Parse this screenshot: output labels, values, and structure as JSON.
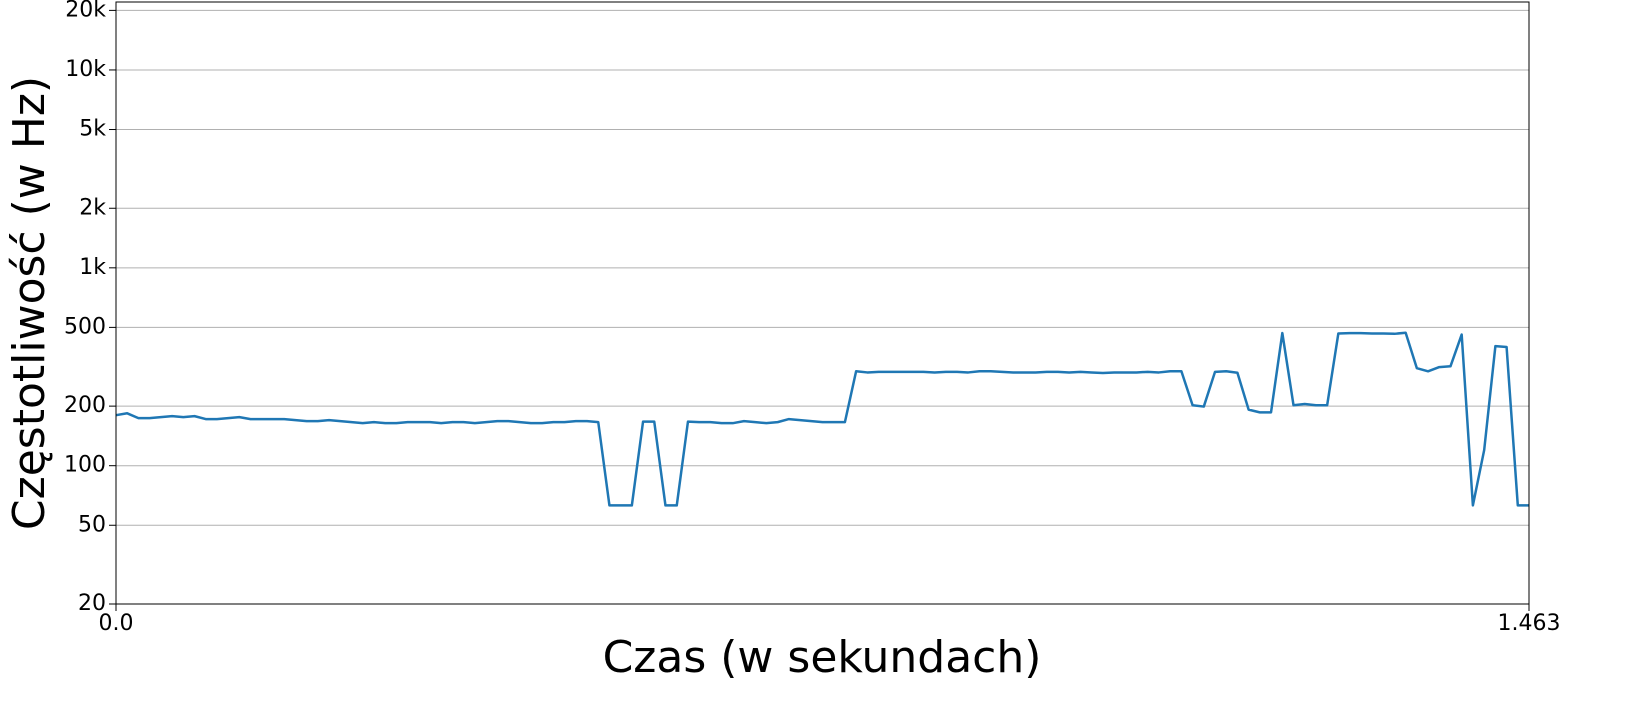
{
  "chart_data": {
    "type": "line",
    "xlabel": "Czas (w sekundach)",
    "ylabel": "Częstotliwość (w Hz)",
    "x": [
      0,
      0.0116,
      0.0232,
      0.0348,
      0.0464,
      0.0581,
      0.0697,
      0.0813,
      0.0929,
      0.1045,
      0.1161,
      0.1277,
      0.1393,
      0.1509,
      0.1626,
      0.1742,
      0.1858,
      0.1974,
      0.209,
      0.2206,
      0.2322,
      0.2438,
      0.2554,
      0.2671,
      0.2787,
      0.2903,
      0.3019,
      0.3135,
      0.3251,
      0.3367,
      0.3483,
      0.3599,
      0.3716,
      0.3832,
      0.3948,
      0.4064,
      0.418,
      0.4296,
      0.4412,
      0.4528,
      0.4644,
      0.4761,
      0.4877,
      0.4993,
      0.5109,
      0.5225,
      0.5341,
      0.5457,
      0.5573,
      0.5689,
      0.5806,
      0.5922,
      0.6038,
      0.6154,
      0.627,
      0.6386,
      0.6502,
      0.6618,
      0.6734,
      0.6851,
      0.6967,
      0.7083,
      0.7199,
      0.7315,
      0.7431,
      0.7547,
      0.7663,
      0.7779,
      0.7896,
      0.8012,
      0.8128,
      0.8244,
      0.836,
      0.8476,
      0.8592,
      0.8708,
      0.8824,
      0.8941,
      0.9057,
      0.9173,
      0.9289,
      0.9405,
      0.9521,
      0.9637,
      0.9753,
      0.9869,
      0.9986,
      1.0102,
      1.0218,
      1.0334,
      1.045,
      1.0566,
      1.0682,
      1.0798,
      1.0914,
      1.1031,
      1.1147,
      1.1263,
      1.1379,
      1.1495,
      1.1611,
      1.1727,
      1.1843,
      1.1959,
      1.2076,
      1.2192,
      1.2308,
      1.2424,
      1.254,
      1.2656,
      1.2772,
      1.2888,
      1.3004,
      1.3121,
      1.3237,
      1.3353,
      1.3469,
      1.3585,
      1.3701,
      1.3817,
      1.3933,
      1.4049,
      1.4166,
      1.4282,
      1.4398,
      1.4514,
      1.463
    ],
    "series": [
      {
        "color": "#1f77b4",
        "values": [
          180,
          184,
          174,
          174,
          176,
          178,
          176,
          178,
          172,
          172,
          174,
          176,
          172,
          172,
          172,
          172,
          170,
          168,
          168,
          170,
          168,
          166,
          164,
          166,
          164,
          164,
          166,
          166,
          166,
          164,
          166,
          166,
          164,
          166,
          168,
          168,
          166,
          164,
          164,
          166,
          166,
          168,
          168,
          166,
          63,
          63,
          63,
          167,
          167,
          63,
          63,
          167,
          166,
          166,
          164,
          164,
          168,
          166,
          164,
          166,
          172,
          170,
          168,
          166,
          166,
          166,
          300,
          296,
          298,
          298,
          298,
          298,
          298,
          296,
          298,
          298,
          296,
          300,
          300,
          298,
          296,
          296,
          296,
          298,
          298,
          296,
          298,
          296,
          294,
          296,
          296,
          296,
          298,
          296,
          300,
          300,
          202,
          199,
          298,
          300,
          295,
          192,
          186,
          186,
          468,
          202,
          205,
          202,
          202,
          466,
          468,
          468,
          466,
          466,
          464,
          470,
          311,
          300,
          315,
          318,
          460,
          63,
          120,
          402,
          398,
          63,
          63
        ]
      }
    ],
    "xlim": [
      0,
      1.463
    ],
    "xticks": [
      {
        "value": 0,
        "label": "0.0"
      },
      1.463
    ],
    "ylim": [
      20,
      22050
    ],
    "yticks": [
      20,
      50,
      100,
      200,
      500,
      {
        "value": 1000,
        "label": "1k"
      },
      {
        "value": 2000,
        "label": "2k"
      },
      {
        "value": 5000,
        "label": "5k"
      },
      {
        "value": 10000,
        "label": "10k"
      },
      {
        "value": 20000,
        "label": "20k"
      }
    ],
    "ylog": true,
    "grid": true
  }
}
